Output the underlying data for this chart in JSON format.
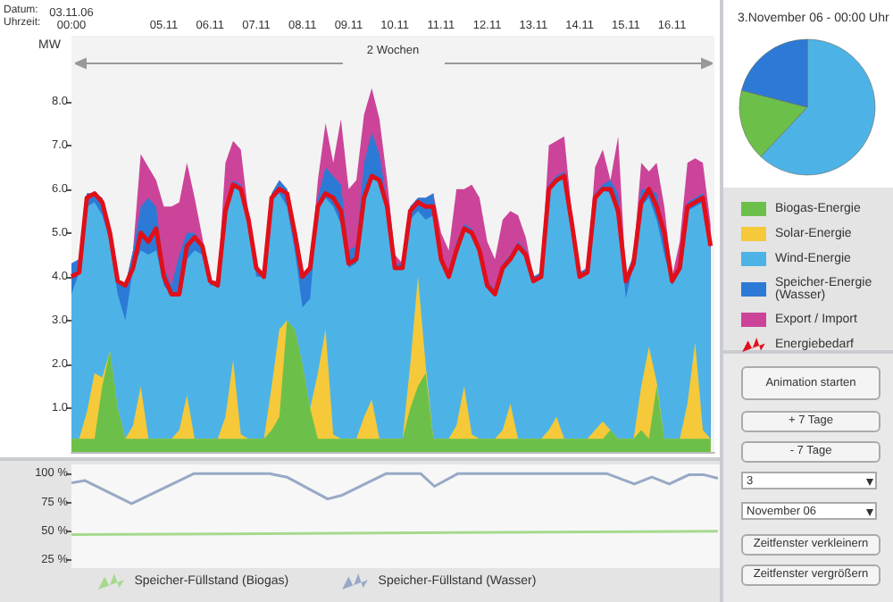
{
  "chart_data": [
    {
      "type": "area",
      "stacked": true,
      "ylabel": "MW",
      "annotations": [
        "Datum:",
        "Uhrzeit:",
        "2 Wochen"
      ],
      "x": [
        "--11-03T00:00",
        "--11-03T04:00",
        "--11-03T08:00",
        "--11-03T12:00",
        "--11-03T16:00",
        "--11-03T20:00",
        "--11-04T00:00",
        "--11-04T04:00",
        "--11-04T08:00",
        "--11-04T12:00",
        "--11-04T16:00",
        "--11-04T20:00",
        "--11-05T00:00",
        "--11-05T04:00",
        "--11-05T08:00",
        "--11-05T12:00",
        "--11-05T16:00",
        "--11-05T20:00",
        "--11-06T00:00",
        "--11-06T04:00",
        "--11-06T08:00",
        "--11-06T12:00",
        "--11-06T16:00",
        "--11-06T20:00",
        "--11-07T00:00",
        "--11-07T04:00",
        "--11-07T08:00",
        "--11-07T12:00",
        "--11-07T16:00",
        "--11-07T20:00",
        "--11-08T00:00",
        "--11-08T04:00",
        "--11-08T08:00",
        "--11-08T12:00",
        "--11-08T16:00",
        "--11-08T20:00",
        "--11-09T00:00",
        "--11-09T04:00",
        "--11-09T08:00",
        "--11-09T12:00",
        "--11-09T16:00",
        "--11-09T20:00",
        "--11-10T00:00",
        "--11-10T04:00",
        "--11-10T08:00",
        "--11-10T12:00",
        "--11-10T16:00",
        "--11-10T20:00",
        "--11-11T00:00",
        "--11-11T04:00",
        "--11-11T08:00",
        "--11-11T12:00",
        "--11-11T16:00",
        "--11-11T20:00",
        "--11-12T00:00",
        "--11-12T04:00",
        "--11-12T08:00",
        "--11-12T12:00",
        "--11-12T16:00",
        "--11-12T20:00",
        "--11-13T00:00",
        "--11-13T04:00",
        "--11-13T08:00",
        "--11-13T12:00",
        "--11-13T16:00",
        "--11-13T20:00",
        "--11-14T00:00",
        "--11-14T04:00",
        "--11-14T08:00",
        "--11-14T12:00",
        "--11-14T16:00",
        "--11-14T20:00",
        "--11-15T00:00",
        "--11-15T04:00",
        "--11-15T08:00",
        "--11-15T12:00",
        "--11-15T16:00",
        "--11-15T20:00",
        "--11-16T00:00",
        "--11-16T04:00",
        "--11-16T08:00",
        "--11-16T12:00",
        "--11-16T16:00",
        "--11-16T20:00"
      ],
      "xlim": [
        "--11-03T00:00",
        "--11-16T22:00"
      ],
      "xticks": [
        {
          "value": "--11-03",
          "label": "03.11.06\n00:00"
        },
        {
          "value": "--11-05",
          "label": "05.11"
        },
        {
          "value": "--11-06",
          "label": "06.11"
        },
        {
          "value": "--11-07",
          "label": "07.11"
        },
        {
          "value": "--11-08",
          "label": "08.11"
        },
        {
          "value": "--11-09",
          "label": "09.11"
        },
        {
          "value": "--11-10",
          "label": "10.11"
        },
        {
          "value": "--11-11",
          "label": "11.11"
        },
        {
          "value": "--11-12",
          "label": "12.11"
        },
        {
          "value": "--11-13",
          "label": "13.11"
        },
        {
          "value": "--11-14",
          "label": "14.11"
        },
        {
          "value": "--11-15",
          "label": "15.11"
        },
        {
          "value": "--11-16",
          "label": "16.11"
        }
      ],
      "ylim": [
        0,
        9.5
      ],
      "yticks": [
        {
          "value": 1,
          "label": "1.0"
        },
        {
          "value": 2,
          "label": "2.0"
        },
        {
          "value": 3,
          "label": "3.0"
        },
        {
          "value": 4,
          "label": "4.0"
        },
        {
          "value": 5,
          "label": "5.0"
        },
        {
          "value": 6,
          "label": "6.0"
        },
        {
          "value": 7,
          "label": "7.0"
        },
        {
          "value": 8,
          "label": "8.0"
        }
      ],
      "legend": "right",
      "series": [
        {
          "name": "Biogas-Energie",
          "color": "#6cc04a",
          "values": [
            0.3,
            0.3,
            0.3,
            0.3,
            1.5,
            2.3,
            1.0,
            0.3,
            0.3,
            0.3,
            0.3,
            0.3,
            0.3,
            0.3,
            0.3,
            0.3,
            0.3,
            0.3,
            0.3,
            0.3,
            0.3,
            0.3,
            0.3,
            0.3,
            0.3,
            0.3,
            0.5,
            0.8,
            3.0,
            2.8,
            2.0,
            1.0,
            0.3,
            0.3,
            0.3,
            0.3,
            0.3,
            0.3,
            0.3,
            0.3,
            0.3,
            0.3,
            0.3,
            0.3,
            1.0,
            1.5,
            1.8,
            0.3,
            0.3,
            0.3,
            0.3,
            0.3,
            0.3,
            0.3,
            0.3,
            0.3,
            0.3,
            0.3,
            0.3,
            0.3,
            0.3,
            0.3,
            0.3,
            0.3,
            0.3,
            0.3,
            0.3,
            0.3,
            0.3,
            0.3,
            0.5,
            0.3,
            0.3,
            0.3,
            0.5,
            0.3,
            1.5,
            0.3,
            0.3,
            0.3,
            0.3,
            0.3,
            0.3,
            0.3
          ]
        },
        {
          "name": "Solar-Energie",
          "color": "#f5c93a",
          "values": [
            0,
            0,
            0.6,
            1.5,
            0.2,
            0,
            0,
            0,
            0.3,
            1.2,
            0,
            0,
            0,
            0,
            0.2,
            1.0,
            0,
            0,
            0,
            0,
            0.5,
            1.8,
            0.1,
            0,
            0,
            0,
            1.0,
            2.0,
            0,
            0,
            0,
            0,
            1.5,
            2.5,
            0.1,
            0,
            0,
            0,
            0.5,
            0.9,
            0,
            0,
            0,
            0,
            1.0,
            2.5,
            0.2,
            0,
            0,
            0,
            0.3,
            1.2,
            0.1,
            0,
            0,
            0,
            0.2,
            0.8,
            0,
            0,
            0,
            0,
            0.2,
            0.5,
            0,
            0,
            0,
            0,
            0.2,
            0.4,
            0,
            0,
            0,
            0,
            1.0,
            2.1,
            0.1,
            0,
            0,
            0,
            0.8,
            2.2,
            0.2,
            0
          ]
        },
        {
          "name": "Wind-Energie",
          "color": "#4db3e6",
          "values": [
            3.3,
            3.8,
            4.7,
            3.9,
            3.7,
            2.5,
            2.6,
            2.7,
            3.6,
            3.1,
            4.2,
            4.3,
            3.5,
            3.3,
            3.1,
            3.1,
            4.3,
            4.2,
            3.5,
            3.5,
            4.7,
            4.0,
            5.6,
            5.0,
            3.7,
            3.7,
            4.3,
            3.1,
            2.6,
            1.8,
            1.3,
            2.5,
            3.8,
            3.0,
            5.2,
            4.9,
            3.9,
            4.0,
            5.0,
            5.1,
            5.9,
            5.3,
            3.9,
            3.9,
            3.3,
            1.5,
            3.3,
            5.1,
            4.1,
            3.7,
            4.0,
            3.6,
            4.6,
            4.3,
            3.5,
            3.3,
            3.7,
            3.3,
            4.4,
            4.2,
            3.6,
            3.7,
            5.5,
            5.4,
            6.0,
            4.9,
            3.7,
            3.8,
            5.3,
            5.3,
            5.4,
            5.0,
            3.2,
            4.0,
            4.1,
            3.4,
            3.7,
            4.2,
            3.5,
            3.9,
            4.4,
            3.1,
            5.2,
            4.3
          ]
        },
        {
          "name": "Speicher-Energie (Wasser)",
          "color": "#2d7ad6",
          "values": [
            0.7,
            0.3,
            0.3,
            0.2,
            0.4,
            0.2,
            0.3,
            0.8,
            0.4,
            1.0,
            1.3,
            1.0,
            0.4,
            0.2,
            0.9,
            0.6,
            0.4,
            0.2,
            0.1,
            0.1,
            0.1,
            0.1,
            0.1,
            0.1,
            0.2,
            0.1,
            0.1,
            0.3,
            0.4,
            0.4,
            0.7,
            0.7,
            0.2,
            0.7,
            0.7,
            0.9,
            0.4,
            0.4,
            0.8,
            1.0,
            0.6,
            0.1,
            0.1,
            0.1,
            0.3,
            0.3,
            0.5,
            0.5,
            0.1,
            0.1,
            0.2,
            0.1,
            0.1,
            0.1,
            0.1,
            0.1,
            0.1,
            0.1,
            0.1,
            0.1,
            0.1,
            0.1,
            0.1,
            0.1,
            0.1,
            0.1,
            0.1,
            0.1,
            0.1,
            0.1,
            0.3,
            0.6,
            0.5,
            0.2,
            0.4,
            0.2,
            0.6,
            0.5,
            0.2,
            0.1,
            0.2,
            0.2,
            0.2,
            0.2
          ]
        },
        {
          "name": "Export / Import",
          "color": "#cc4499",
          "values": [
            0,
            0,
            0,
            0,
            0,
            0,
            0,
            0,
            0,
            1.2,
            0.7,
            0.6,
            1.4,
            1.8,
            1.2,
            1.6,
            0.8,
            0.2,
            0,
            0,
            1.0,
            0.9,
            0.8,
            0,
            0,
            0,
            0,
            0,
            0,
            0,
            0,
            0,
            0.4,
            1.0,
            0.3,
            1.5,
            1.4,
            1.5,
            1.1,
            1.0,
            0.8,
            0.5,
            0.2,
            0,
            0,
            0,
            0,
            0,
            0.5,
            0.5,
            1.2,
            0.8,
            1.0,
            1.1,
            0.9,
            0.7,
            1.0,
            1.0,
            0.6,
            0.3,
            0,
            0,
            0.9,
            0.8,
            0.8,
            0.1,
            0,
            0,
            0.6,
            0.8,
            0,
            1.3,
            0,
            0,
            0.6,
            0.4,
            0.7,
            0.6,
            0,
            0.5,
            0.9,
            0.9,
            0.7,
            0.4
          ]
        },
        {
          "name": "Energiebedarf",
          "type": "line",
          "color": "#e0101a",
          "values": [
            4.0,
            4.1,
            5.8,
            5.9,
            5.7,
            5.0,
            3.9,
            3.8,
            4.2,
            5.0,
            4.8,
            5.1,
            4.0,
            3.6,
            3.6,
            4.7,
            4.9,
            4.7,
            3.9,
            3.8,
            5.5,
            6.1,
            6.0,
            5.3,
            4.2,
            4.0,
            5.8,
            6.0,
            5.9,
            5.0,
            4.0,
            4.2,
            5.6,
            5.9,
            5.8,
            5.5,
            4.3,
            4.4,
            5.8,
            6.3,
            6.2,
            5.6,
            4.2,
            4.2,
            5.5,
            5.7,
            5.6,
            5.6,
            4.4,
            4.0,
            4.6,
            5.1,
            5.0,
            4.6,
            3.8,
            3.6,
            4.2,
            4.4,
            4.7,
            4.5,
            3.9,
            4.0,
            6.0,
            6.2,
            6.3,
            5.2,
            4.0,
            4.1,
            5.8,
            6.0,
            6.0,
            5.5,
            3.9,
            4.3,
            5.7,
            6.0,
            5.6,
            5.0,
            3.9,
            4.2,
            5.6,
            5.7,
            5.8,
            4.7
          ]
        }
      ]
    },
    {
      "type": "pie",
      "title": "3.November 06 - 00:00 Uhr",
      "categories": [
        null,
        null,
        null
      ],
      "values": [
        62,
        17,
        21
      ],
      "colors": [
        "#4db3e6",
        "#6cc04a",
        "#2d7ad6"
      ]
    },
    {
      "type": "line",
      "xlim": [
        "--11-03T00:00",
        "--11-16T22:00"
      ],
      "ylim": [
        18,
        108
      ],
      "yticks": [
        {
          "value": 25,
          "label": "25 %"
        },
        {
          "value": 50,
          "label": "50 %"
        },
        {
          "value": 75,
          "label": "75 %"
        },
        {
          "value": 100,
          "label": "100 %"
        }
      ],
      "tick_labels": "y",
      "legend": "bottom",
      "series": [
        {
          "name": "Speicher-Füllstand (Biogas)",
          "color": "#a6d98c",
          "x": [
            "--11-03T00:00",
            "--11-16T21:00"
          ],
          "values": [
            47,
            50
          ]
        },
        {
          "name": "Speicher-Füllstand (Wasser)",
          "color": "#98a9c6",
          "x": [
            "--11-03T00:00",
            "--11-03T07:00",
            "--11-04T07:00",
            "--11-05T15:00",
            "--11-07T06:00",
            "--11-07T15:00",
            "--11-08T12:00",
            "--11-08T19:00",
            "--11-09T18:00",
            "--11-10T12:00",
            "--11-10T19:00",
            "--11-11T07:00",
            "--11-14T12:00",
            "--11-15T02:00",
            "--11-15T11:00",
            "--11-15T20:00",
            "--11-16T06:00",
            "--11-16T14:00",
            "--11-16T21:00"
          ],
          "values": [
            92,
            94,
            74,
            100,
            100,
            97,
            78,
            81,
            100,
            100,
            89,
            100,
            100,
            91,
            97,
            91,
            99,
            99,
            96
          ]
        }
      ]
    },
    {
      "type": "other",
      "annotations": [
        "Animation starten",
        "+ 7 Tage",
        "- 7 Tage",
        "3",
        "November 06",
        "Zeitfenster verkleinern",
        "Zeitfenster vergrößern"
      ]
    }
  ]
}
